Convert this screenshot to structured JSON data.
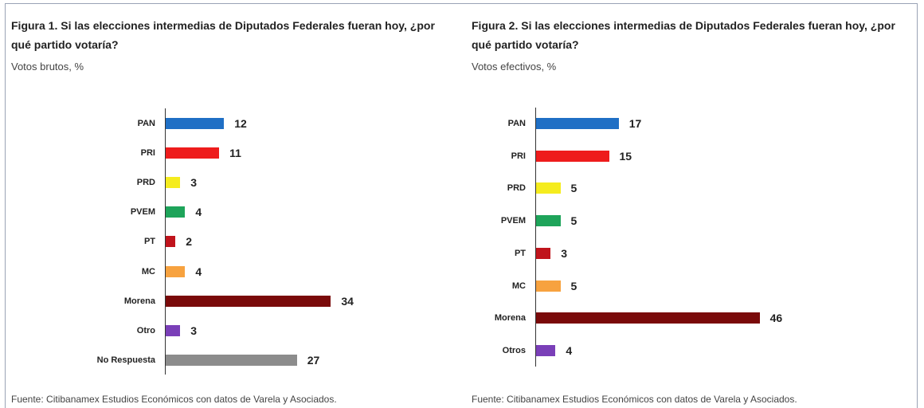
{
  "chart_data": [
    {
      "type": "bar",
      "title": "Figura 1. Si las elecciones intermedias de Diputados Federales fueran hoy, ¿por qué partido votaría?",
      "subtitle": "Votos brutos, %",
      "categories": [
        "PAN",
        "PRI",
        "PRD",
        "PVEM",
        "PT",
        "MC",
        "Morena",
        "Otro",
        "No Respuesta"
      ],
      "values": [
        12,
        11,
        3,
        4,
        2,
        4,
        34,
        3,
        27
      ],
      "colors": [
        "#1f6fc5",
        "#ee1c1c",
        "#f5ec1e",
        "#1ea45a",
        "#c0141c",
        "#f7a23f",
        "#7a0a0a",
        "#7a3fb8",
        "#8c8c8c"
      ],
      "source": "Fuente: Citibanamex Estudios Económicos con datos de Varela y Asociados."
    },
    {
      "type": "bar",
      "title": "Figura 2. Si las elecciones intermedias de Diputados Federales fueran hoy, ¿por qué partido votaría?",
      "subtitle": "Votos efectivos, %",
      "categories": [
        "PAN",
        "PRI",
        "PRD",
        "PVEM",
        "PT",
        "MC",
        "Morena",
        "Otros"
      ],
      "values": [
        17,
        15,
        5,
        5,
        3,
        5,
        46,
        4
      ],
      "colors": [
        "#1f6fc5",
        "#ee1c1c",
        "#f5ec1e",
        "#1ea45a",
        "#c0141c",
        "#f7a23f",
        "#7a0a0a",
        "#7a3fb8"
      ],
      "source": "Fuente: Citibanamex Estudios Económicos con datos de Varela y Asociados."
    }
  ]
}
